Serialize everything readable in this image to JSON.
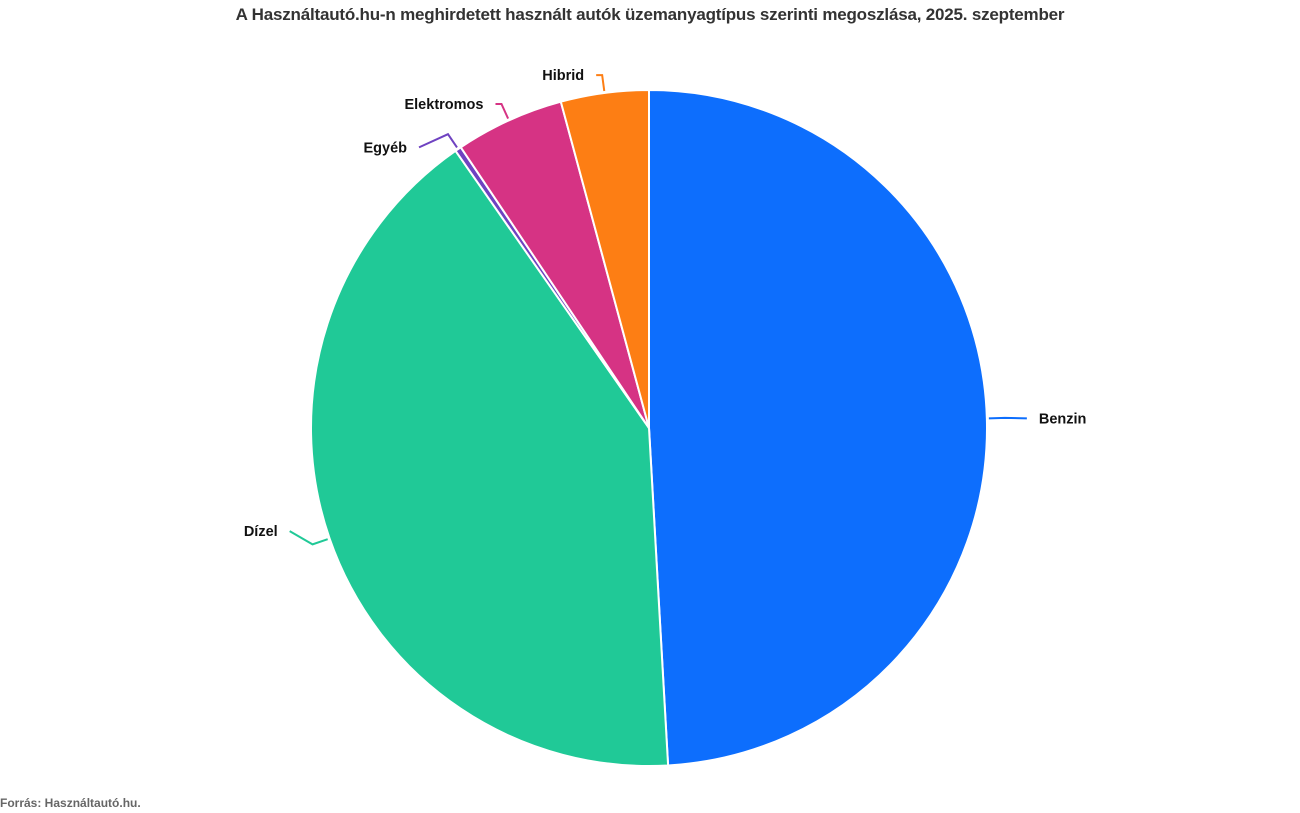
{
  "chart_data": {
    "type": "pie",
    "title": "A Használtautó.hu-n meghirdetett használt autók üzemanyagtípus szerinti megoszlása, 2025. szeptember",
    "categories": [
      "Benzin",
      "Dízel",
      "Egyéb",
      "Elektromos",
      "Hibrid"
    ],
    "values": [
      49.1,
      41.2,
      0.3,
      5.2,
      4.2
    ],
    "colors": [
      "#0d6efd",
      "#20c997",
      "#6f42c1",
      "#d63384",
      "#fd7e14"
    ],
    "start": "top, clockwise",
    "source": "Forrás: Használtautó.hu."
  }
}
